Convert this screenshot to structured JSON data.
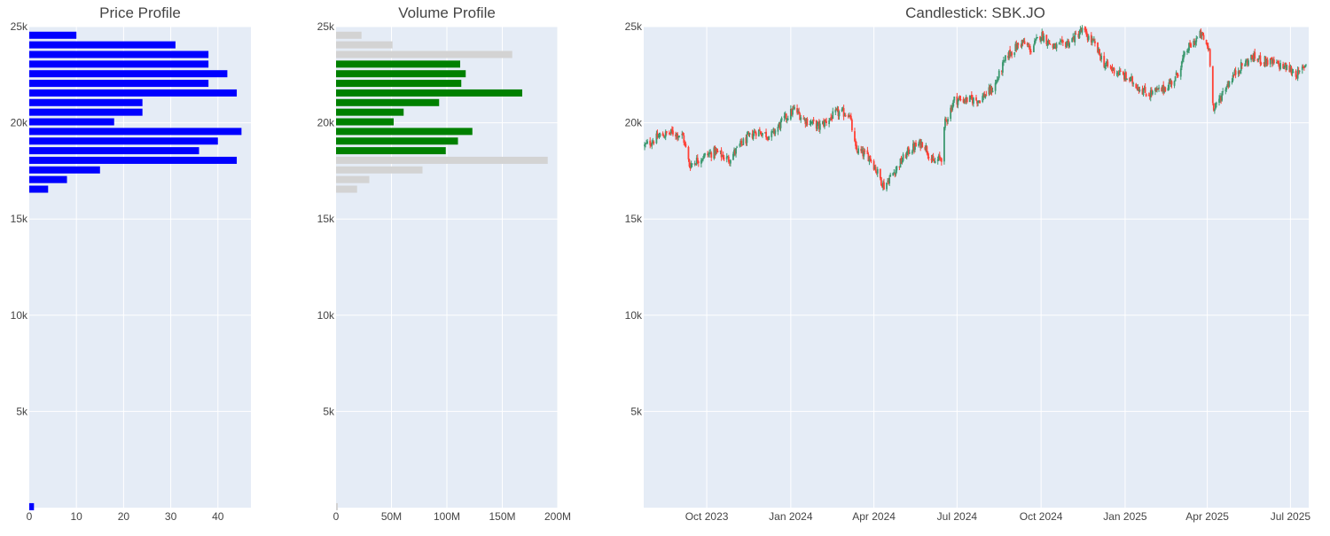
{
  "colors": {
    "plot_bg": "#e5ecf6",
    "grid": "#ffffff",
    "price_bar": "#0000ff",
    "volume_in_range": "#008000",
    "volume_out_range": "#d3d3d3",
    "candle_up": "#3d9970",
    "candle_down": "#ff4136"
  },
  "chart_data": [
    {
      "type": "bar",
      "orientation": "horizontal",
      "title": "Price Profile",
      "xlim": [
        0,
        47
      ],
      "ylim": [
        0,
        25000
      ],
      "x_ticks": [
        0,
        10,
        20,
        30,
        40
      ],
      "x_tick_labels": [
        "0",
        "10",
        "20",
        "30",
        "40"
      ],
      "y_ticks": [
        5000,
        10000,
        15000,
        20000,
        25000
      ],
      "y_tick_labels": [
        "5k",
        "10k",
        "15k",
        "20k",
        "25k"
      ],
      "grid": true,
      "bars": [
        {
          "price": 24550,
          "value": 10
        },
        {
          "price": 24050,
          "value": 31
        },
        {
          "price": 23550,
          "value": 38
        },
        {
          "price": 23050,
          "value": 38
        },
        {
          "price": 22550,
          "value": 42
        },
        {
          "price": 22050,
          "value": 38
        },
        {
          "price": 21550,
          "value": 44
        },
        {
          "price": 21050,
          "value": 24
        },
        {
          "price": 20550,
          "value": 24
        },
        {
          "price": 20050,
          "value": 18
        },
        {
          "price": 19550,
          "value": 45
        },
        {
          "price": 19050,
          "value": 40
        },
        {
          "price": 18550,
          "value": 36
        },
        {
          "price": 18050,
          "value": 44
        },
        {
          "price": 17550,
          "value": 15
        },
        {
          "price": 17050,
          "value": 8
        },
        {
          "price": 16550,
          "value": 4
        },
        {
          "price": 50,
          "value": 1
        }
      ]
    },
    {
      "type": "bar",
      "orientation": "horizontal",
      "title": "Volume Profile",
      "xlim": [
        0,
        200000000
      ],
      "ylim": [
        0,
        25000
      ],
      "x_ticks": [
        0,
        50000000,
        100000000,
        150000000,
        200000000
      ],
      "x_tick_labels": [
        "0",
        "50M",
        "100M",
        "150M",
        "200M"
      ],
      "y_ticks": [
        5000,
        10000,
        15000,
        20000,
        25000
      ],
      "y_tick_labels": [
        "5k",
        "10k",
        "15k",
        "20k",
        "25k"
      ],
      "grid": true,
      "bars": [
        {
          "price": 24550,
          "value": 23000000,
          "in_range": false
        },
        {
          "price": 24050,
          "value": 51000000,
          "in_range": false
        },
        {
          "price": 23550,
          "value": 159000000,
          "in_range": false
        },
        {
          "price": 23050,
          "value": 112000000,
          "in_range": true
        },
        {
          "price": 22550,
          "value": 117000000,
          "in_range": true
        },
        {
          "price": 22050,
          "value": 113000000,
          "in_range": true
        },
        {
          "price": 21550,
          "value": 168000000,
          "in_range": true
        },
        {
          "price": 21050,
          "value": 93000000,
          "in_range": true
        },
        {
          "price": 20550,
          "value": 61000000,
          "in_range": true
        },
        {
          "price": 20050,
          "value": 52000000,
          "in_range": true
        },
        {
          "price": 19550,
          "value": 123000000,
          "in_range": true
        },
        {
          "price": 19050,
          "value": 110000000,
          "in_range": true
        },
        {
          "price": 18550,
          "value": 99000000,
          "in_range": true
        },
        {
          "price": 18050,
          "value": 191000000,
          "in_range": false
        },
        {
          "price": 17550,
          "value": 78000000,
          "in_range": false
        },
        {
          "price": 17050,
          "value": 30000000,
          "in_range": false
        },
        {
          "price": 16550,
          "value": 19000000,
          "in_range": false
        },
        {
          "price": 50,
          "value": 1000000,
          "in_range": false
        }
      ]
    },
    {
      "type": "candlestick",
      "title": "Candlestick: SBK.JO",
      "xlim": [
        "2023-07-24",
        "2025-07-21"
      ],
      "ylim": [
        0,
        25000
      ],
      "x_ticks": [
        "2023-10-01",
        "2024-01-01",
        "2024-04-01",
        "2024-07-01",
        "2024-10-01",
        "2025-01-01",
        "2025-04-01",
        "2025-07-01"
      ],
      "x_tick_labels": [
        "Oct 2023",
        "Jan 2024",
        "Apr 2024",
        "Jul 2024",
        "Oct 2024",
        "Jan 2025",
        "Apr 2025",
        "Jul 2025"
      ],
      "y_ticks": [
        5000,
        10000,
        15000,
        20000,
        25000
      ],
      "y_tick_labels": [
        "5k",
        "10k",
        "15k",
        "20k",
        "25k"
      ],
      "grid": true,
      "start_date": "2023-07-25",
      "end_date": "2025-07-18",
      "close_waypoints": [
        [
          "2023-07-25",
          18800
        ],
        [
          "2023-08-10",
          19300
        ],
        [
          "2023-08-25",
          19500
        ],
        [
          "2023-09-05",
          19300
        ],
        [
          "2023-09-12",
          17800
        ],
        [
          "2023-09-25",
          18200
        ],
        [
          "2023-10-10",
          18500
        ],
        [
          "2023-10-25",
          18100
        ],
        [
          "2023-11-10",
          19000
        ],
        [
          "2023-11-25",
          19600
        ],
        [
          "2023-12-10",
          19300
        ],
        [
          "2023-12-25",
          20200
        ],
        [
          "2024-01-05",
          20700
        ],
        [
          "2024-01-15",
          20200
        ],
        [
          "2024-02-01",
          19800
        ],
        [
          "2024-02-20",
          20500
        ],
        [
          "2024-03-05",
          20500
        ],
        [
          "2024-03-12",
          18600
        ],
        [
          "2024-03-28",
          18200
        ],
        [
          "2024-04-12",
          16700
        ],
        [
          "2024-04-28",
          17800
        ],
        [
          "2024-05-10",
          18600
        ],
        [
          "2024-05-25",
          19000
        ],
        [
          "2024-06-05",
          17900
        ],
        [
          "2024-06-14",
          18200
        ],
        [
          "2024-06-18",
          20000
        ],
        [
          "2024-06-28",
          21200
        ],
        [
          "2024-07-10",
          21200
        ],
        [
          "2024-07-25",
          21200
        ],
        [
          "2024-08-10",
          21800
        ],
        [
          "2024-08-25",
          23500
        ],
        [
          "2024-09-10",
          24200
        ],
        [
          "2024-09-20",
          23800
        ],
        [
          "2024-10-01",
          24600
        ],
        [
          "2024-10-15",
          23900
        ],
        [
          "2024-11-01",
          24200
        ],
        [
          "2024-11-15",
          24800
        ],
        [
          "2024-11-28",
          24100
        ],
        [
          "2024-12-10",
          23000
        ],
        [
          "2024-12-25",
          22600
        ],
        [
          "2025-01-10",
          22100
        ],
        [
          "2025-01-25",
          21500
        ],
        [
          "2025-02-10",
          21700
        ],
        [
          "2025-02-25",
          22300
        ],
        [
          "2025-03-10",
          23800
        ],
        [
          "2025-03-25",
          24600
        ],
        [
          "2025-04-03",
          23800
        ],
        [
          "2025-04-08",
          20600
        ],
        [
          "2025-04-20",
          21800
        ],
        [
          "2025-05-05",
          22800
        ],
        [
          "2025-05-20",
          23400
        ],
        [
          "2025-06-05",
          23200
        ],
        [
          "2025-06-25",
          22900
        ],
        [
          "2025-07-10",
          22500
        ],
        [
          "2025-07-18",
          23100
        ]
      ]
    }
  ]
}
